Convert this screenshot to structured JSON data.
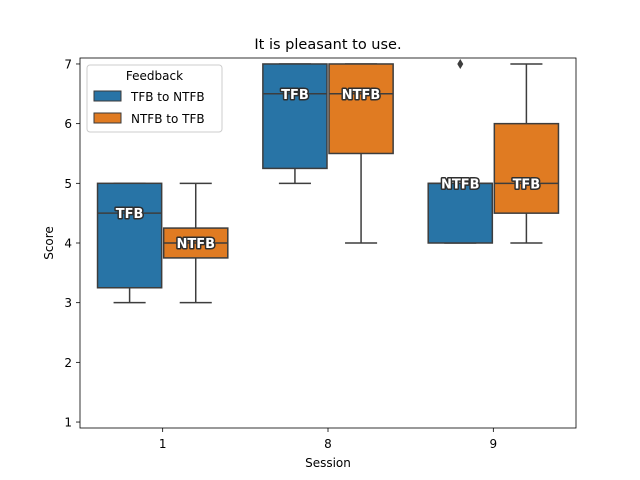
{
  "chart_data": {
    "type": "box",
    "title": "It is pleasant to use.",
    "xlabel": "Session",
    "ylabel": "Score",
    "categories": [
      "1",
      "8",
      "9"
    ],
    "yticks": [
      "1",
      "2",
      "3",
      "4",
      "5",
      "6",
      "7"
    ],
    "ylim": [
      0.9,
      7.1
    ],
    "grid": false,
    "legend": {
      "title": "Feedback",
      "placement": "top-left",
      "entries": [
        "TFB to NTFB",
        "NTFB to TFB"
      ]
    },
    "series": [
      {
        "name": "TFB to NTFB",
        "color": "#2874a6",
        "boxes": [
          {
            "category": "1",
            "whisker_low": 3,
            "q1": 3.25,
            "median": 4.5,
            "q3": 5,
            "whisker_high": 5,
            "outliers": [],
            "label": "TFB"
          },
          {
            "category": "8",
            "whisker_low": 5,
            "q1": 5.25,
            "median": 6.5,
            "q3": 7,
            "whisker_high": 7,
            "outliers": [],
            "label": "TFB"
          },
          {
            "category": "9",
            "whisker_low": 4,
            "q1": 4,
            "median": 5,
            "q3": 5,
            "whisker_high": 5,
            "outliers": [
              7
            ],
            "label": "NTFB"
          }
        ]
      },
      {
        "name": "NTFB to TFB",
        "color": "#e07b22",
        "boxes": [
          {
            "category": "1",
            "whisker_low": 3,
            "q1": 3.75,
            "median": 4,
            "q3": 4.25,
            "whisker_high": 5,
            "outliers": [],
            "label": "NTFB"
          },
          {
            "category": "8",
            "whisker_low": 4,
            "q1": 5.5,
            "median": 6.5,
            "q3": 7,
            "whisker_high": 7,
            "outliers": [],
            "label": "NTFB"
          },
          {
            "category": "9",
            "whisker_low": 4,
            "q1": 4.5,
            "median": 5,
            "q3": 6,
            "whisker_high": 7,
            "outliers": [],
            "label": "TFB"
          }
        ]
      }
    ]
  }
}
